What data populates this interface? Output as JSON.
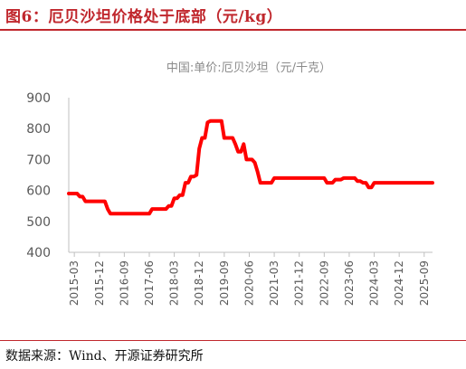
{
  "header": {
    "title": "图6：厄贝沙坦价格处于底部（元/kg）"
  },
  "footer": {
    "source": "数据来源：Wind、开源证券研究所"
  },
  "colors": {
    "accent": "#C0272D",
    "line": "#FF0000",
    "axis": "#BFBFBF",
    "text": "#595959"
  },
  "chart_data": {
    "type": "line",
    "title": "中国:单价:厄贝沙坦（元/千克）",
    "xlabel": "",
    "ylabel": "",
    "ylim": [
      400,
      900
    ],
    "yticks": [
      "400",
      "500",
      "600",
      "700",
      "800",
      "900"
    ],
    "xticks": [
      "2015-03",
      "2015-12",
      "2016-09",
      "2017-06",
      "2018-03",
      "2018-12",
      "2019-09",
      "2020-06",
      "2021-03",
      "2021-12",
      "2022-09",
      "2023-06",
      "2024-03",
      "2024-12",
      "2025-09"
    ],
    "grid": false,
    "series": [
      {
        "name": "中国:单价:厄贝沙坦",
        "color": "#FF0000",
        "x": [
          "2015-01",
          "2015-04",
          "2015-05",
          "2015-06",
          "2015-07",
          "2016-02",
          "2016-03",
          "2016-04",
          "2017-05",
          "2017-06",
          "2017-07",
          "2017-12",
          "2018-01",
          "2018-02",
          "2018-03",
          "2018-04",
          "2018-05",
          "2018-06",
          "2018-07",
          "2018-08",
          "2018-09",
          "2018-10",
          "2018-11",
          "2018-12",
          "2019-01",
          "2019-02",
          "2019-03",
          "2019-04",
          "2019-05",
          "2019-06",
          "2019-07",
          "2019-08",
          "2019-09",
          "2019-10",
          "2019-11",
          "2019-12",
          "2020-01",
          "2020-02",
          "2020-03",
          "2020-04",
          "2020-05",
          "2020-06",
          "2020-07",
          "2020-08",
          "2020-09",
          "2020-10",
          "2020-11",
          "2020-12",
          "2021-01",
          "2021-02",
          "2021-03",
          "2021-04",
          "2021-05",
          "2021-06",
          "2022-09",
          "2022-10",
          "2022-11",
          "2022-12",
          "2023-01",
          "2023-02",
          "2023-03",
          "2023-04",
          "2023-05",
          "2023-06",
          "2023-07",
          "2023-08",
          "2023-09",
          "2023-10",
          "2023-11",
          "2023-12",
          "2024-01",
          "2024-02",
          "2024-03",
          "2024-04",
          "2025-12"
        ],
        "values": [
          590,
          590,
          580,
          580,
          565,
          565,
          540,
          525,
          525,
          525,
          540,
          540,
          550,
          550,
          575,
          575,
          585,
          585,
          625,
          625,
          645,
          645,
          650,
          735,
          770,
          770,
          820,
          825,
          825,
          825,
          825,
          825,
          770,
          770,
          770,
          770,
          750,
          725,
          725,
          750,
          700,
          700,
          700,
          690,
          660,
          625,
          625,
          625,
          625,
          625,
          640,
          640,
          640,
          640,
          640,
          625,
          625,
          625,
          635,
          635,
          635,
          640,
          640,
          640,
          640,
          640,
          630,
          630,
          625,
          625,
          610,
          610,
          625,
          625,
          625
        ]
      }
    ]
  }
}
